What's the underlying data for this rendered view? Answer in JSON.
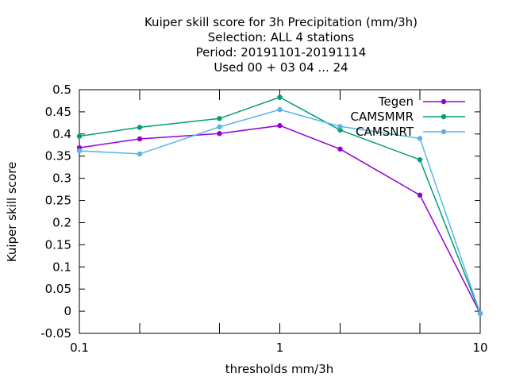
{
  "chart_data": {
    "type": "line",
    "title_lines": [
      "Kuiper skill score  for 3h Precipitation (mm/3h)",
      "Selection: ALL      4 stations",
      "Period: 20191101-20191114",
      "Used  00 + 03 04 ... 24"
    ],
    "xlabel": "thresholds mm/3h",
    "ylabel": "Kuiper skill score",
    "x_scale": "log",
    "xlim": [
      0.1,
      10
    ],
    "ylim": [
      -0.05,
      0.5
    ],
    "x_tick_labels": [
      {
        "value": 0.1,
        "label": "0.1"
      },
      {
        "value": 1,
        "label": "1"
      },
      {
        "value": 10,
        "label": "10"
      }
    ],
    "x_minor_ticks": [
      0.2,
      0.5,
      2,
      5
    ],
    "y_ticks": [
      {
        "value": -0.05,
        "label": "-0.05"
      },
      {
        "value": 0,
        "label": "0"
      },
      {
        "value": 0.05,
        "label": "0.05"
      },
      {
        "value": 0.1,
        "label": "0.1"
      },
      {
        "value": 0.15,
        "label": "0.15"
      },
      {
        "value": 0.2,
        "label": "0.2"
      },
      {
        "value": 0.25,
        "label": "0.25"
      },
      {
        "value": 0.3,
        "label": "0.3"
      },
      {
        "value": 0.35,
        "label": "0.35"
      },
      {
        "value": 0.4,
        "label": "0.4"
      },
      {
        "value": 0.45,
        "label": "0.45"
      },
      {
        "value": 0.5,
        "label": "0.5"
      }
    ],
    "x": [
      0.1,
      0.2,
      0.5,
      1,
      2,
      5,
      10
    ],
    "legend_position": "top-right",
    "grid": false,
    "series": [
      {
        "name": "Tegen",
        "color": "#9400d3",
        "values": [
          0.369,
          0.389,
          0.401,
          0.419,
          0.366,
          0.262,
          -0.005
        ]
      },
      {
        "name": "CAMSMMR",
        "color": "#009e73",
        "values": [
          0.395,
          0.415,
          0.435,
          0.483,
          0.409,
          0.342,
          -0.005
        ]
      },
      {
        "name": "CAMSNRT",
        "color": "#56b4e9",
        "values": [
          0.362,
          0.355,
          0.416,
          0.455,
          0.417,
          0.39,
          -0.005
        ]
      }
    ]
  }
}
